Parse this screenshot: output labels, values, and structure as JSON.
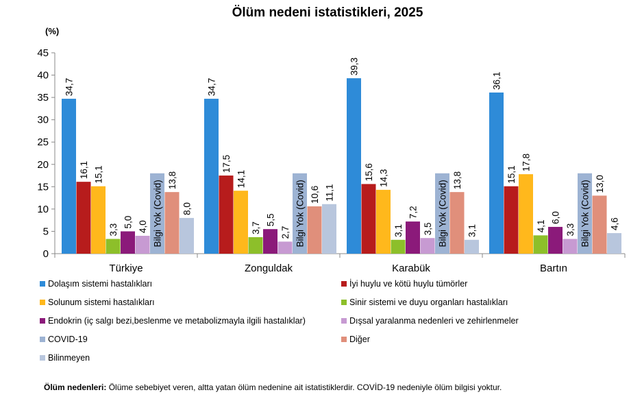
{
  "chart_data": {
    "type": "bar",
    "title": "Ölüm nedeni istatistikleri, 2025",
    "unit_label": "(%)",
    "ylim": [
      0,
      45
    ],
    "yticks": [
      "0",
      "5",
      "10",
      "15",
      "20",
      "25",
      "30",
      "35",
      "40",
      "45"
    ],
    "grid": false,
    "legend_position": "bottom",
    "categories": [
      "Türkiye",
      "Zonguldak",
      "Karabük",
      "Bartın"
    ],
    "covid_label": "Bilgi Yok (Covid)",
    "series": [
      {
        "name": "Dolaşım sistemi hastalıkları",
        "color": "#2E8BD8",
        "values": [
          34.7,
          34.7,
          39.3,
          36.1
        ],
        "labels": [
          "34,7",
          "34,7",
          "39,3",
          "36,1"
        ]
      },
      {
        "name": "İyi huylu ve kötü huylu tümörler",
        "color": "#B71C1C",
        "values": [
          16.1,
          17.5,
          15.6,
          15.1
        ],
        "labels": [
          "16,1",
          "17,5",
          "15,6",
          "15,1"
        ]
      },
      {
        "name": "Solunum sistemi hastalıkları",
        "color": "#FFB81C",
        "values": [
          15.1,
          14.1,
          14.3,
          17.8
        ],
        "labels": [
          "15,1",
          "14,1",
          "14,3",
          "17,8"
        ]
      },
      {
        "name": "Sinir sistemi ve duyu organları hastalıkları",
        "color": "#8DBF2A",
        "values": [
          3.3,
          3.7,
          3.1,
          4.1
        ],
        "labels": [
          "3,3",
          "3,7",
          "3,1",
          "4,1"
        ]
      },
      {
        "name": "Endokrin (iç salgı bezi,beslenme ve metabolizmayla ilgili hastalıklar)",
        "color": "#8B1A7A",
        "values": [
          5.0,
          5.5,
          7.2,
          6.0
        ],
        "labels": [
          "5,0",
          "5,5",
          "7,2",
          "6,0"
        ]
      },
      {
        "name": "Dışsal yaralanma nedenleri ve zehirlenmeler",
        "color": "#C79AD2",
        "values": [
          4.0,
          2.7,
          3.5,
          3.3
        ],
        "labels": [
          "4,0",
          "2,7",
          "3,5",
          "3,3"
        ]
      },
      {
        "name": "COVID-19",
        "color": "#9DB3D3",
        "values": [
          null,
          null,
          null,
          null
        ],
        "labels": [
          "",
          "",
          "",
          ""
        ]
      },
      {
        "name": "Diğer",
        "color": "#E08F7B",
        "values": [
          13.8,
          10.6,
          13.8,
          13.0
        ],
        "labels": [
          "13,8",
          "10,6",
          "13,8",
          "13,0"
        ]
      },
      {
        "name": "Bilinmeyen",
        "color": "#B8C6DD",
        "values": [
          8.0,
          11.1,
          3.1,
          4.6
        ],
        "labels": [
          "8,0",
          "11,1",
          "3,1",
          "4,6"
        ]
      }
    ]
  },
  "footnote": {
    "bold": "Ölüm nedenleri:",
    "text": " Ölüme sebebiyet veren, altta yatan ölüm nedenine ait istatistiklerdir. COVİD-19 nedeniyle ölüm bilgisi yoktur."
  }
}
